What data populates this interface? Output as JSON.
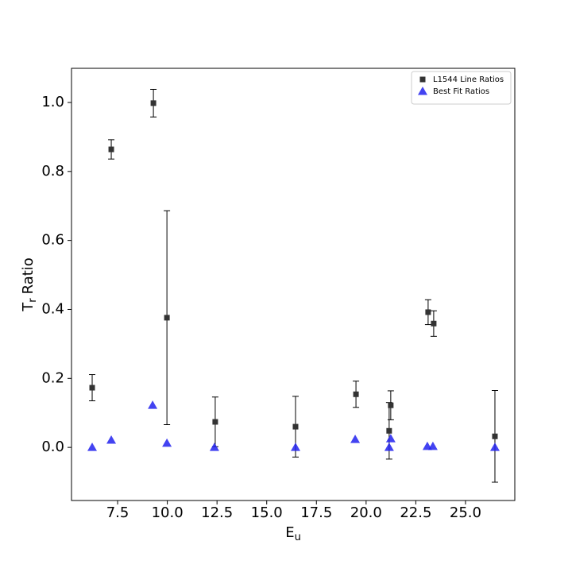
{
  "chart_data": {
    "type": "scatter",
    "x_label": [
      "E",
      "u"
    ],
    "y_label": [
      "T",
      "r",
      "Ratio"
    ],
    "xlim": [
      5.18,
      27.48
    ],
    "ylim": [
      -0.154,
      1.099
    ],
    "xticks": [
      7.5,
      {
        "value": 10,
        "label": "10.0"
      },
      12.5,
      {
        "value": 15,
        "label": "15.0"
      },
      17.5,
      {
        "value": 20,
        "label": "20.0"
      },
      22.5,
      {
        "value": 25,
        "label": "25.0"
      }
    ],
    "yticks": [
      {
        "value": 0,
        "label": "0.0"
      },
      0.2,
      0.4,
      0.6,
      0.8,
      {
        "value": 1,
        "label": "1.0"
      }
    ],
    "legend": "upper right",
    "series": [
      {
        "name": "L1544 Line Ratios",
        "color": "#333333",
        "marker": "square",
        "x": [
          6.22,
          7.18,
          9.3,
          9.98,
          12.41,
          16.45,
          19.49,
          21.16,
          21.24,
          23.12,
          23.4,
          26.48
        ],
        "values": [
          0.173,
          0.864,
          0.998,
          0.376,
          0.074,
          0.06,
          0.154,
          0.048,
          0.122,
          0.392,
          0.359,
          0.032
        ],
        "errors": [
          0.038,
          0.028,
          0.04,
          0.31,
          0.072,
          0.088,
          0.038,
          0.082,
          0.042,
          0.036,
          0.037,
          0.133
        ]
      },
      {
        "name": "Best Fit Ratios",
        "color": "#2222ee",
        "marker": "triangle",
        "x": [
          6.22,
          7.18,
          9.26,
          9.98,
          12.37,
          16.45,
          19.45,
          21.16,
          21.24,
          23.08,
          23.36,
          26.48
        ],
        "values": [
          0.0,
          0.021,
          0.122,
          0.012,
          0.0,
          0.0,
          0.023,
          0.0,
          0.025,
          0.003,
          0.003,
          0.0
        ]
      }
    ]
  }
}
